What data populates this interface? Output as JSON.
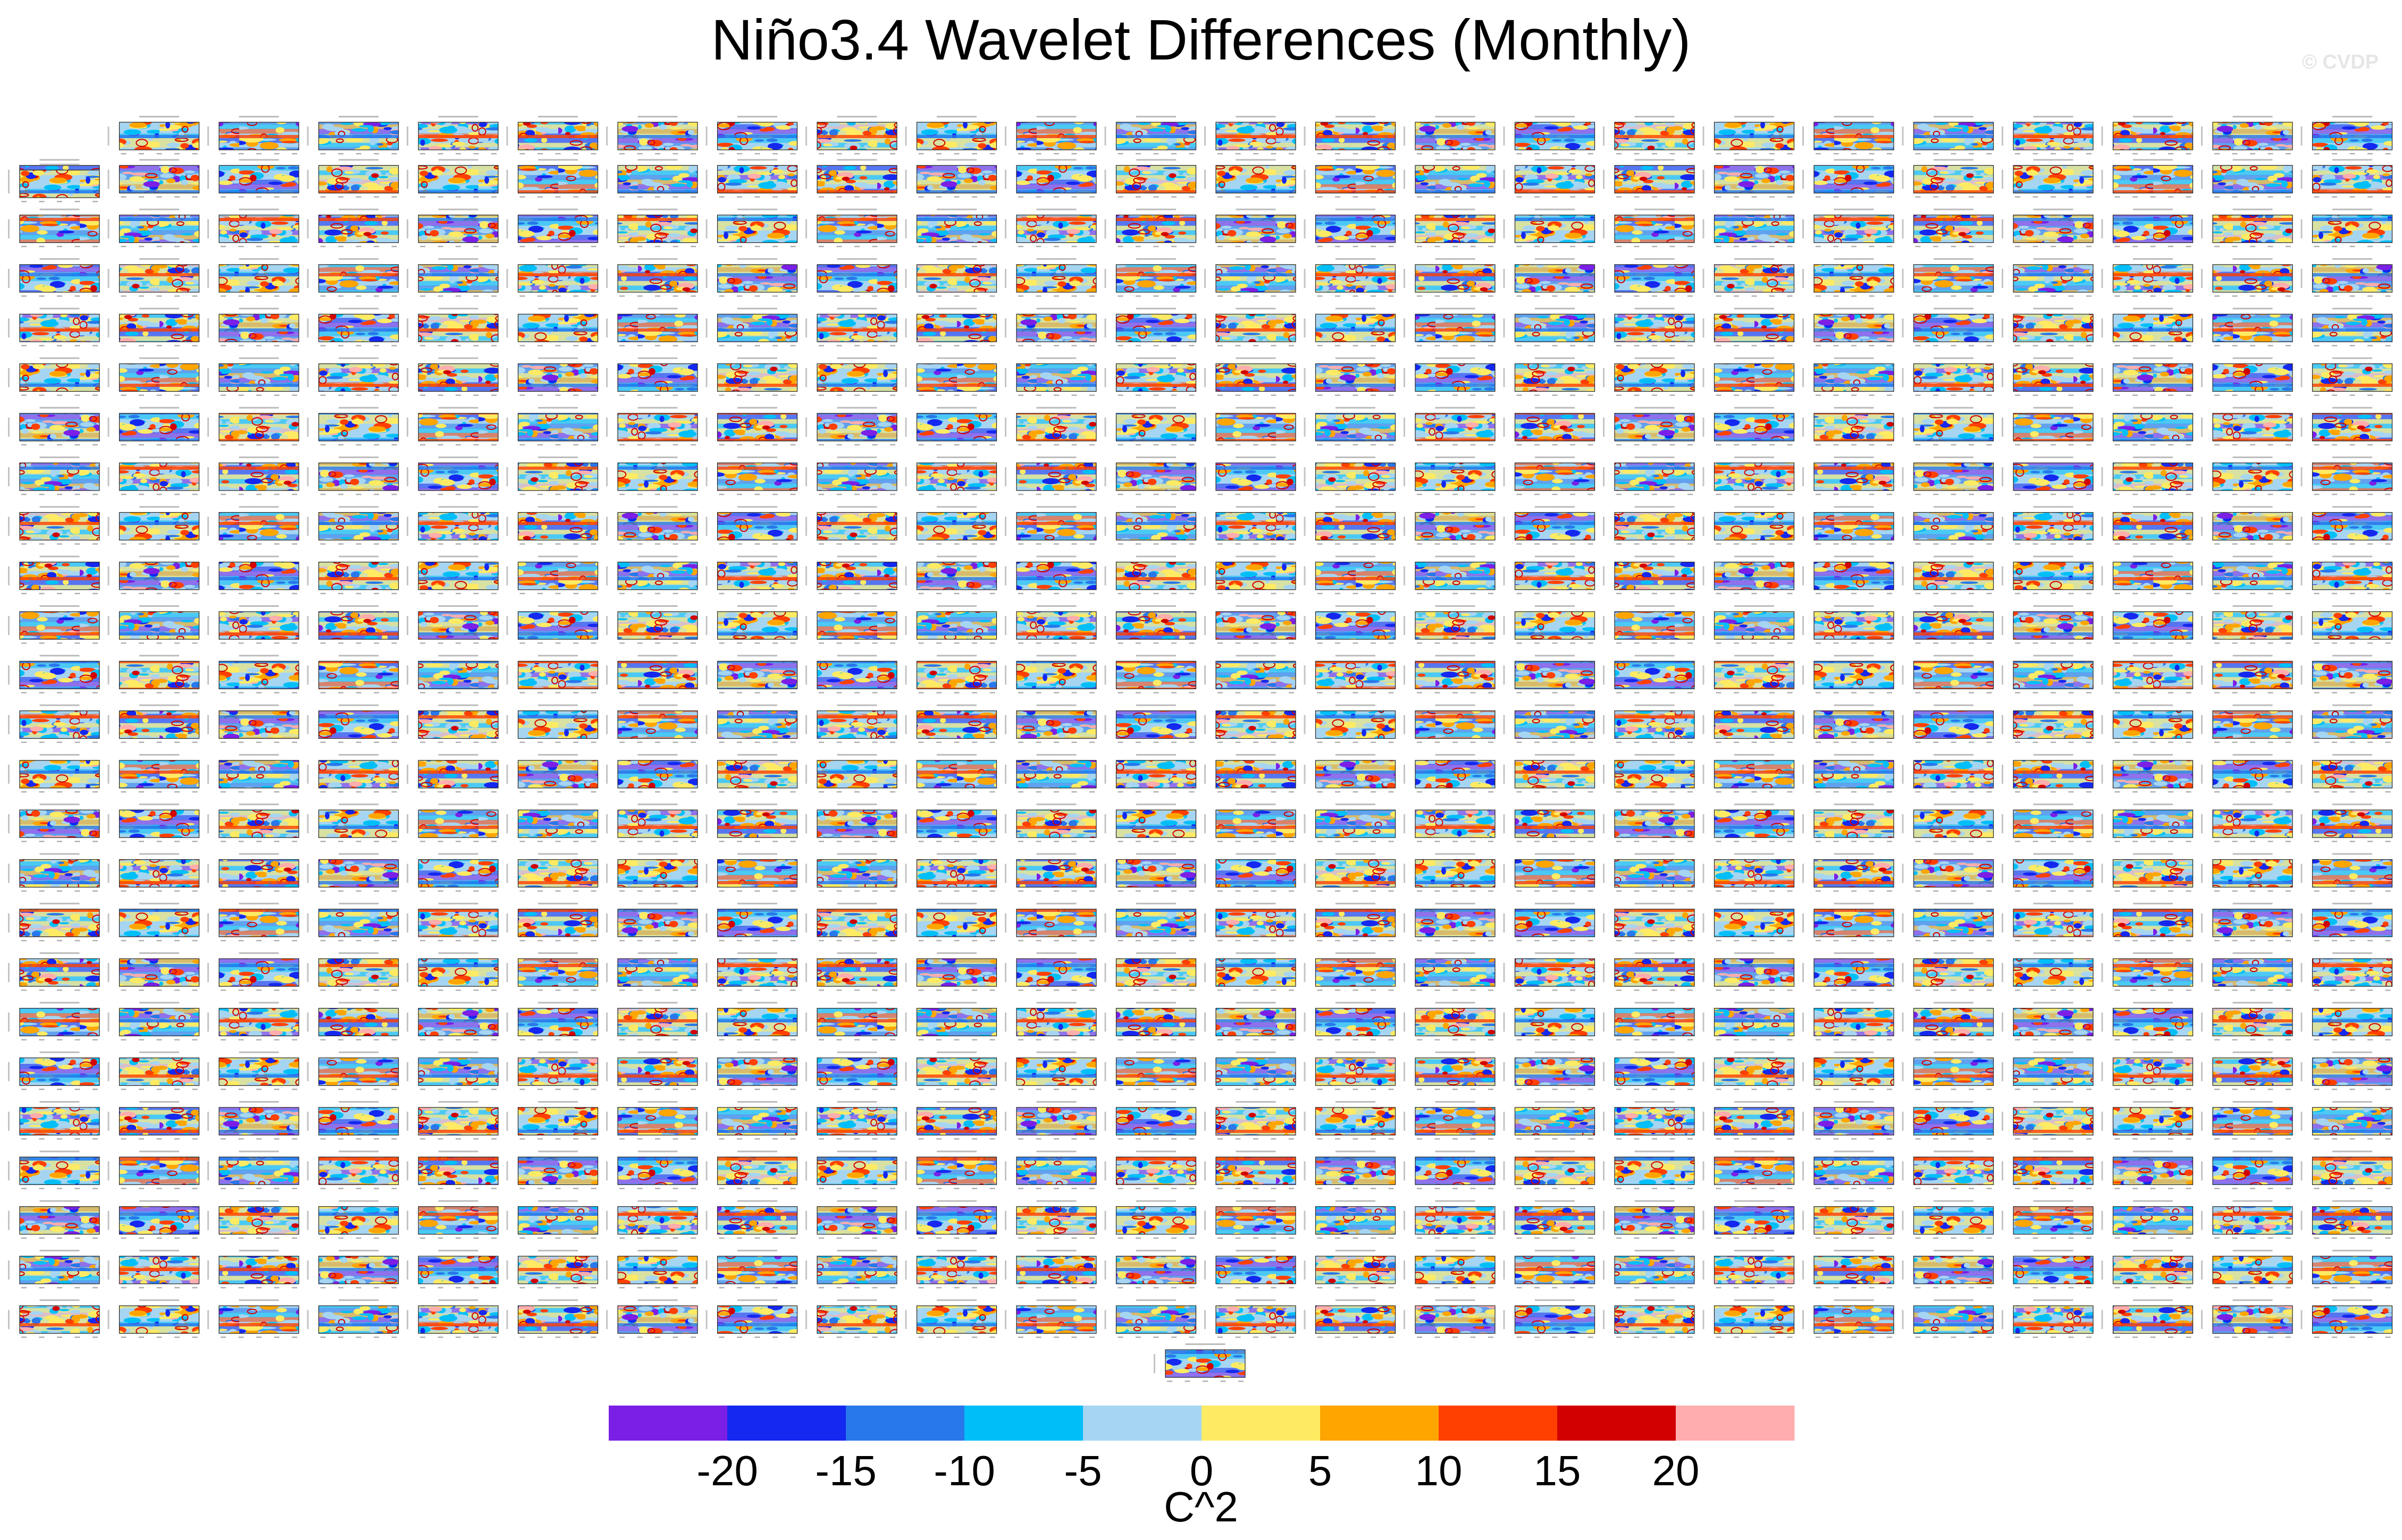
{
  "title": "Niño3.4 Wavelet Differences (Monthly)",
  "watermark": "© CVDP",
  "chart_data": {
    "type": "heatmap",
    "title": "Niño3.4 Wavelet Differences (Monthly)",
    "layout": {
      "rows": 25,
      "columns": 24,
      "row1_panels": 23,
      "extra_bottom_panels": 1
    },
    "colorbar": {
      "label": "C^2",
      "levels": [
        -20,
        -15,
        -10,
        -5,
        0,
        5,
        10,
        15,
        20
      ],
      "tick_labels": [
        "-20",
        "-15",
        "-10",
        "-5",
        "0",
        "5",
        "10",
        "15",
        "20"
      ],
      "colors": [
        "#7b1fe6",
        "#1428f0",
        "#2877eb",
        "#00bff8",
        "#a6d5f2",
        "#feeb63",
        "#fea500",
        "#ff4000",
        "#d20000",
        "#ffadad"
      ],
      "range": [
        -20,
        20
      ]
    }
  }
}
